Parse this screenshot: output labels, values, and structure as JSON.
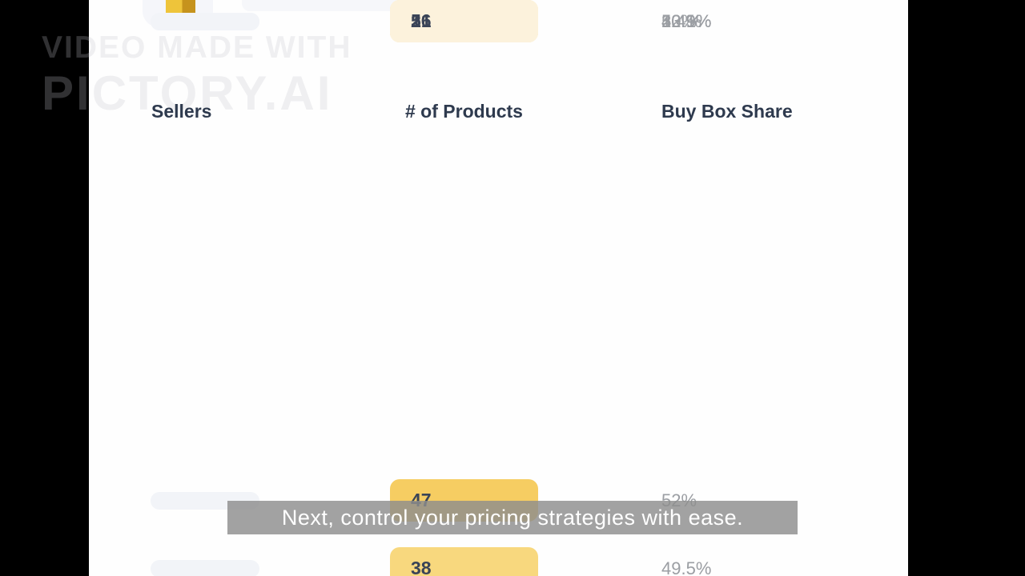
{
  "watermark": {
    "line1": "VIDEO MADE WITH",
    "line2": "PICTORY.AI"
  },
  "header": {
    "columns": {
      "sellers": "Sellers",
      "products": "# of Products",
      "buy_box_share": "Buy Box Share"
    }
  },
  "table": {
    "rows": [
      {
        "products": "47",
        "share": "52%",
        "box_color": "#F6CD62"
      },
      {
        "products": "38",
        "share": "49.5%",
        "box_color": "#F8D87E"
      },
      {
        "products": "27",
        "share": "42.9%",
        "box_color": "#F8E3A6"
      },
      {
        "products": "23",
        "share": "30%",
        "box_color": "#FBEFD3"
      },
      {
        "products": "21",
        "share": "23.1%",
        "box_color": "#FCF2DC"
      },
      {
        "products": "16",
        "share": "10.9%",
        "box_color": ""
      },
      {
        "products": "5",
        "share": "5.4%",
        "box_color": ""
      }
    ]
  },
  "caption": {
    "text": "Next, control your pricing strategies with ease."
  },
  "colors": {
    "accent_gold": "#EEC43A",
    "accent_gold_dark": "#C6931D",
    "header_text": "#2E3A4E",
    "value_text": "#3A4457",
    "share_text": "#9B9EA3",
    "skeleton": "#F2F4F8"
  }
}
